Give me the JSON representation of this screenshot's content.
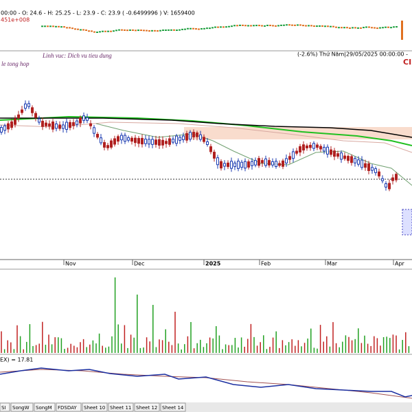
{
  "header": {
    "ohlc": "00:00 - O: 24.6 - H: 25.25 - L: 23.9 - C: 23.9 ( -0.6499996 ) V: 1659400",
    "sub": "451e+008"
  },
  "chart": {
    "sector": "Linh vuc: Dich vu tieu dung",
    "index_name": "le tong hop",
    "status": "(-2.6%) Thứ Năm|29/05/2025 00:00:00 -",
    "code": "CI",
    "months": [
      "Nov",
      "Dec",
      "2025",
      "Feb",
      "Mar",
      "Apr"
    ]
  },
  "indicator": {
    "label": "EX) = 17.81"
  },
  "tabs": [
    "SI",
    "SongW",
    "SongM",
    "FDSDAY",
    "Sheet 10",
    "Sheet 11",
    "Sheet 12",
    "Sheet 14"
  ]
}
